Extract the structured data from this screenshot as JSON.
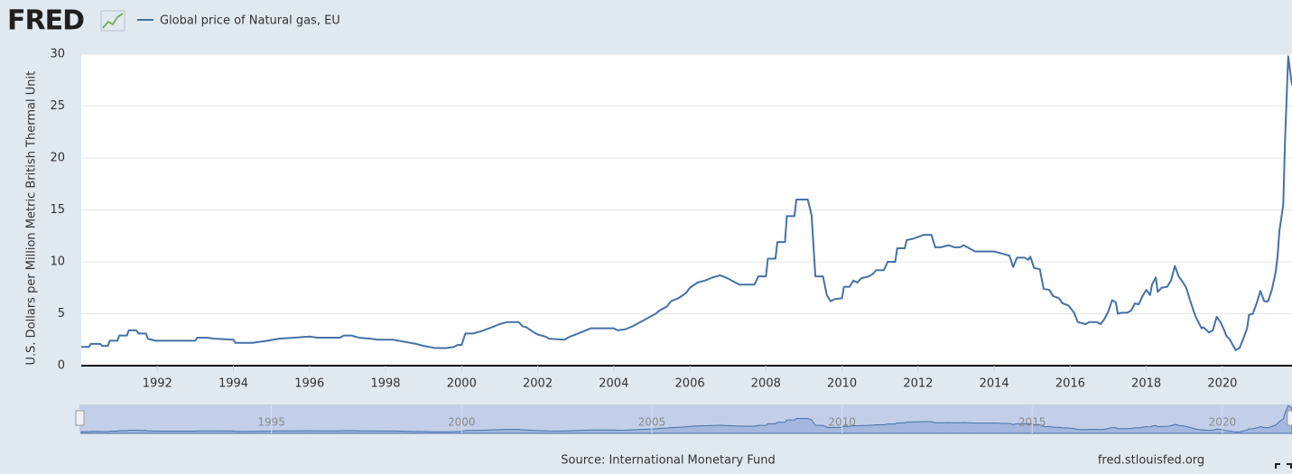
{
  "chart_data": {
    "type": "line",
    "logo": "FRED",
    "y_label": "U.S. Dollars per Million Metric British Thermal Unit",
    "source": "Source: International Monetary Fund",
    "site": "fred.stlouisfed.org",
    "xlim": [
      1990,
      2021.83
    ],
    "xticks": [
      1992,
      1994,
      1996,
      1998,
      2000,
      2002,
      2004,
      2006,
      2008,
      2010,
      2012,
      2014,
      2016,
      2018,
      2020
    ],
    "ylim": [
      0,
      30
    ],
    "yticks": [
      0,
      5,
      10,
      15,
      20,
      25,
      30
    ],
    "grid": true,
    "navigator_xticks": [
      1995,
      2000,
      2005,
      2010,
      2015,
      2020
    ],
    "x": [
      1990.0,
      1990.2,
      1990.25,
      1990.5,
      1990.55,
      1990.7,
      1990.75,
      1990.95,
      1991.0,
      1991.2,
      1991.25,
      1991.45,
      1991.5,
      1991.7,
      1991.75,
      1991.95,
      1992.5,
      1993.0,
      1993.05,
      1993.3,
      1993.5,
      1994.0,
      1994.05,
      1994.5,
      1994.9,
      1995.2,
      1995.6,
      1996.0,
      1996.2,
      1996.8,
      1996.9,
      1997.1,
      1997.3,
      1997.6,
      1997.8,
      1998.2,
      1998.5,
      1998.8,
      1999.0,
      1999.3,
      1999.6,
      1999.8,
      1999.9,
      2000.0,
      2000.1,
      2000.3,
      2000.5,
      2000.8,
      2001.0,
      2001.2,
      2001.5,
      2001.6,
      2001.7,
      2001.9,
      2002.0,
      2002.2,
      2002.3,
      2002.7,
      2002.85,
      2003.0,
      2003.2,
      2003.4,
      2004.0,
      2004.1,
      2004.3,
      2004.5,
      2004.7,
      2004.9,
      2005.1,
      2005.2,
      2005.4,
      2005.5,
      2005.7,
      2005.9,
      2006.0,
      2006.2,
      2006.4,
      2006.6,
      2006.8,
      2007.0,
      2007.1,
      2007.3,
      2007.7,
      2007.8,
      2008.0,
      2008.05,
      2008.25,
      2008.3,
      2008.5,
      2008.55,
      2008.75,
      2008.8,
      2009.1,
      2009.2,
      2009.3,
      2009.5,
      2009.6,
      2009.7,
      2009.8,
      2010.0,
      2010.05,
      2010.2,
      2010.3,
      2010.4,
      2010.5,
      2010.7,
      2010.8,
      2010.9,
      2011.1,
      2011.2,
      2011.4,
      2011.45,
      2011.65,
      2011.7,
      2011.85,
      2012.0,
      2012.15,
      2012.35,
      2012.45,
      2012.6,
      2012.8,
      2012.95,
      2013.1,
      2013.2,
      2013.4,
      2013.5,
      2014.0,
      2014.2,
      2014.4,
      2014.5,
      2014.6,
      2014.8,
      2014.9,
      2014.95,
      2015.05,
      2015.2,
      2015.3,
      2015.45,
      2015.55,
      2015.7,
      2015.8,
      2015.95,
      2016.1,
      2016.2,
      2016.4,
      2016.5,
      2016.7,
      2016.8,
      2016.9,
      2017.0,
      2017.1,
      2017.2,
      2017.25,
      2017.35,
      2017.5,
      2017.6,
      2017.7,
      2017.8,
      2017.9,
      2018.0,
      2018.1,
      2018.15,
      2018.25,
      2018.3,
      2018.4,
      2018.55,
      2018.65,
      2018.75,
      2018.85,
      2018.95,
      2019.05,
      2019.15,
      2019.25,
      2019.3,
      2019.45,
      2019.5,
      2019.65,
      2019.75,
      2019.85,
      2019.95,
      2020.05,
      2020.1,
      2020.2,
      2020.3,
      2020.35,
      2020.45,
      2020.55,
      2020.65,
      2020.7,
      2020.8,
      2020.9,
      2021.0,
      2021.1,
      2021.2,
      2021.3,
      2021.4,
      2021.45,
      2021.5,
      2021.6,
      2021.65,
      2021.73,
      2021.83
    ],
    "series": [
      {
        "name": "Global price of Natural gas, EU",
        "color": "#4572a7",
        "values": [
          1.8,
          1.8,
          2.1,
          2.1,
          1.9,
          1.9,
          2.4,
          2.4,
          2.9,
          2.9,
          3.4,
          3.4,
          3.1,
          3.1,
          2.6,
          2.4,
          2.4,
          2.4,
          2.7,
          2.7,
          2.6,
          2.5,
          2.2,
          2.2,
          2.4,
          2.6,
          2.7,
          2.8,
          2.7,
          2.7,
          2.9,
          2.9,
          2.7,
          2.6,
          2.5,
          2.5,
          2.3,
          2.1,
          1.9,
          1.7,
          1.7,
          1.8,
          2.0,
          2.0,
          3.1,
          3.1,
          3.3,
          3.7,
          4.0,
          4.2,
          4.2,
          3.8,
          3.7,
          3.2,
          3.0,
          2.8,
          2.6,
          2.5,
          2.8,
          3.0,
          3.3,
          3.6,
          3.6,
          3.4,
          3.5,
          3.8,
          4.2,
          4.6,
          5.0,
          5.3,
          5.7,
          6.2,
          6.5,
          7.0,
          7.5,
          8.0,
          8.2,
          8.5,
          8.7,
          8.4,
          8.2,
          7.8,
          7.8,
          8.6,
          8.6,
          10.3,
          10.3,
          11.9,
          11.9,
          14.4,
          14.4,
          16.0,
          16.0,
          14.5,
          8.6,
          8.6,
          6.8,
          6.2,
          6.4,
          6.5,
          7.6,
          7.6,
          8.2,
          8.0,
          8.4,
          8.6,
          8.8,
          9.2,
          9.2,
          10.0,
          10.0,
          11.3,
          11.3,
          12.1,
          12.2,
          12.4,
          12.6,
          12.6,
          11.4,
          11.4,
          11.6,
          11.4,
          11.4,
          11.6,
          11.2,
          11.0,
          11.0,
          10.8,
          10.6,
          9.5,
          10.4,
          10.4,
          10.2,
          10.5,
          9.4,
          9.3,
          7.4,
          7.3,
          6.7,
          6.5,
          6.0,
          5.8,
          5.1,
          4.2,
          4.0,
          4.2,
          4.2,
          4.0,
          4.5,
          5.2,
          6.3,
          6.1,
          5.0,
          5.1,
          5.1,
          5.3,
          6.0,
          5.9,
          6.7,
          7.3,
          6.8,
          7.8,
          8.5,
          7.1,
          7.5,
          7.6,
          8.2,
          9.6,
          8.6,
          8.1,
          7.5,
          6.3,
          5.2,
          4.7,
          3.6,
          3.7,
          3.2,
          3.4,
          4.7,
          4.2,
          3.4,
          2.9,
          2.5,
          1.8,
          1.5,
          1.7,
          2.6,
          3.6,
          4.9,
          5.0,
          6.0,
          7.2,
          6.2,
          6.2,
          7.3,
          9.0,
          10.5,
          13.0,
          15.5,
          22.0,
          29.8,
          27.0
        ]
      }
    ]
  }
}
